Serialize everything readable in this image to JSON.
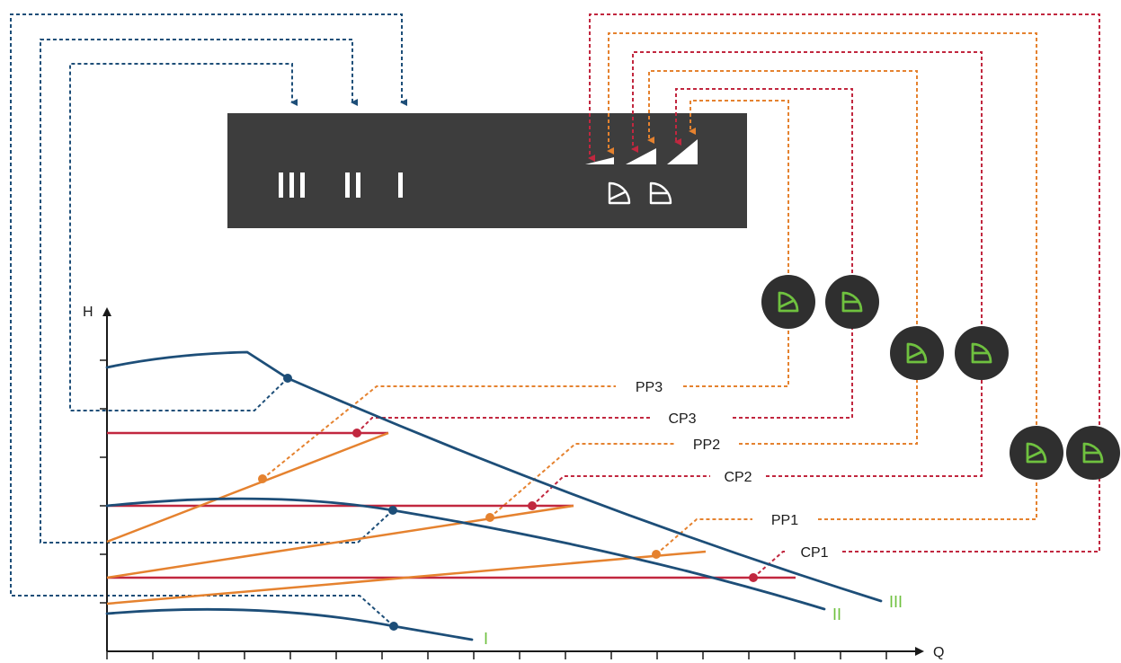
{
  "colors": {
    "blue": "#1d4e78",
    "red": "#c1273f",
    "orange": "#e5822f",
    "green": "#6fc13f",
    "panel": "#3d3d3d",
    "symbol_bg": "#2f2f2f",
    "text": "#1a1a1a"
  },
  "panel": {
    "speed_labels": [
      "III",
      "II",
      "I"
    ],
    "icons": [
      "pressure-ramp-small-icon",
      "pressure-ramp-medium-icon",
      "pressure-ramp-large-icon",
      "proportional-pressure-icon",
      "constant-pressure-icon"
    ]
  },
  "axes": {
    "y_label": "H",
    "x_label": "Q"
  },
  "curve_labels": {
    "I": "I",
    "II": "II",
    "III": "III"
  },
  "setpoints": {
    "pp3": "PP3",
    "cp3": "CP3",
    "pp2": "PP2",
    "cp2": "CP2",
    "pp1": "PP1",
    "cp1": "CP1"
  },
  "symbols": [
    "proportional-pressure-icon",
    "constant-pressure-icon"
  ]
}
